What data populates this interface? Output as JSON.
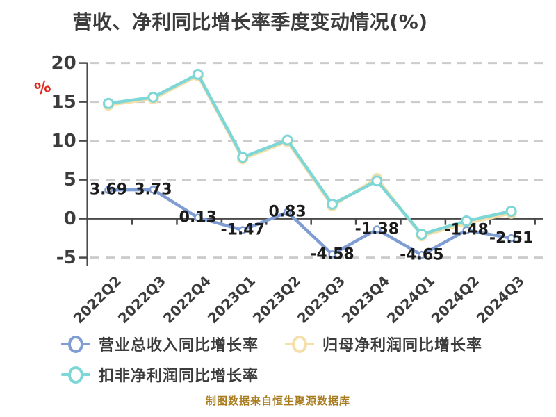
{
  "title": "营收、净利同比增长率季度变动情况(%)",
  "percent_mark": "%",
  "footer": "制图数据来自恒生聚源数据库",
  "colors": {
    "background": "#ffffff",
    "axis": "#4a4a4a",
    "grid": "#cccccc",
    "title_text": "#3c3c3c",
    "data_label": "#1b1b1b",
    "footer_text": "#a87c1e",
    "percent_mark": "#e02a20",
    "series_revenue_blue": "#7f9dd3",
    "series_net_profit_yellow": "#f6e0aa",
    "series_net_profit_excl_teal": "#7ed6d6"
  },
  "chart_data": {
    "type": "line",
    "categories": [
      "2022Q2",
      "2022Q3",
      "2022Q4",
      "2023Q1",
      "2023Q2",
      "2023Q3",
      "2023Q4",
      "2024Q1",
      "2024Q2",
      "2024Q3"
    ],
    "series": [
      {
        "name": "营业总收入同比增长率",
        "color": "#7f9dd3",
        "values": [
          3.69,
          3.73,
          0.13,
          -1.47,
          0.83,
          -4.58,
          -1.38,
          -4.65,
          -1.48,
          -2.51
        ],
        "labels_shown": true
      },
      {
        "name": "归母净利润同比增长率",
        "color": "#f6e0aa",
        "values": [
          14.6,
          15.4,
          18.35,
          7.7,
          9.9,
          1.65,
          5.15,
          -2.2,
          -0.6,
          0.7
        ],
        "labels_shown": false,
        "values_estimated": true
      },
      {
        "name": "扣非净利润同比增长率",
        "color": "#7ed6d6",
        "values": [
          14.8,
          15.6,
          18.55,
          7.9,
          10.1,
          1.85,
          4.85,
          -2.0,
          -0.3,
          0.95
        ],
        "labels_shown": false,
        "values_estimated": true
      }
    ],
    "xlabel": "",
    "ylabel": "%",
    "ylim": [
      -5,
      20
    ],
    "yticks": [
      20,
      15,
      10,
      5,
      0,
      -5
    ],
    "grid": "horizontal-dashed",
    "legend_position": "bottom-left"
  }
}
